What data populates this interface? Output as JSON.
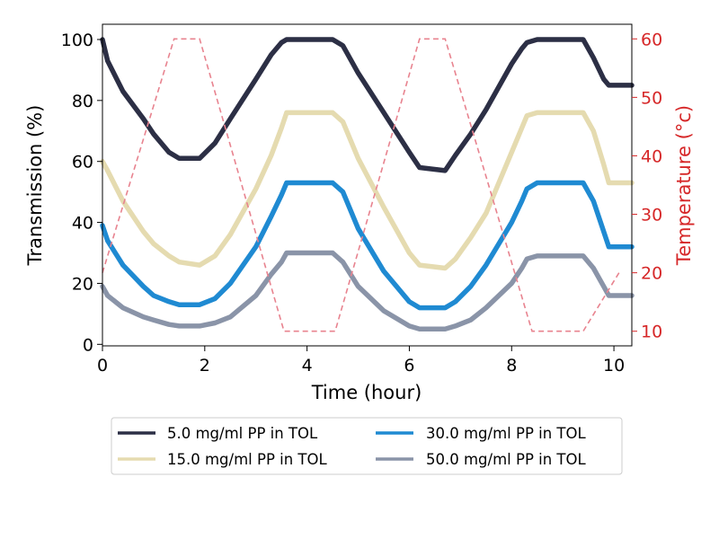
{
  "chart_data": {
    "type": "line",
    "xlabel": "Time (hour)",
    "ylabel": "Transmission (%)",
    "y2label": "Temperature (°c)",
    "xlim": [
      0,
      10.35
    ],
    "ylim": [
      -0.5,
      105
    ],
    "y2lim": [
      7.5,
      62.5
    ],
    "x_ticks": [
      0,
      2,
      4,
      6,
      8,
      10
    ],
    "y_ticks": [
      0,
      20,
      40,
      60,
      80,
      100
    ],
    "y2_ticks": [
      10,
      20,
      30,
      40,
      50,
      60
    ],
    "grid": false,
    "legend_position": "below plot",
    "temperature_color": "#d62728",
    "series": [
      {
        "name": "5.0 mg/ml PP in TOL",
        "color": "#2c2f45",
        "x": [
          0,
          0.1,
          0.4,
          0.8,
          1.0,
          1.3,
          1.5,
          1.9,
          2.2,
          2.5,
          3.0,
          3.3,
          3.5,
          3.6,
          4.0,
          4.5,
          4.7,
          5.0,
          5.5,
          6.0,
          6.2,
          6.7,
          6.9,
          7.2,
          7.5,
          8.0,
          8.2,
          8.3,
          8.5,
          9.0,
          9.4,
          9.6,
          9.8,
          9.9,
          10.35
        ],
        "y": [
          100,
          93,
          83,
          74,
          69,
          63,
          61,
          61,
          66,
          74,
          87,
          95,
          99,
          100,
          100,
          100,
          98,
          89,
          76,
          63,
          58,
          57,
          62,
          69,
          77,
          92,
          97,
          99,
          100,
          100,
          100,
          94,
          87,
          85,
          85
        ]
      },
      {
        "name": "15.0 mg/ml PP in TOL",
        "color": "#e5dbb0",
        "x": [
          0,
          0.1,
          0.4,
          0.8,
          1.0,
          1.3,
          1.5,
          1.9,
          2.2,
          2.5,
          3.0,
          3.3,
          3.5,
          3.6,
          4.0,
          4.5,
          4.7,
          5.0,
          5.5,
          6.0,
          6.2,
          6.7,
          6.9,
          7.2,
          7.5,
          8.0,
          8.2,
          8.3,
          8.5,
          9.0,
          9.4,
          9.6,
          9.8,
          9.9,
          10.35
        ],
        "y": [
          60,
          57,
          47,
          37,
          33,
          29,
          27,
          26,
          29,
          36,
          51,
          62,
          71,
          76,
          76,
          76,
          73,
          61,
          45,
          30,
          26,
          25,
          28,
          35,
          43,
          63,
          71,
          75,
          76,
          76,
          76,
          70,
          59,
          53,
          53
        ]
      },
      {
        "name": "30.0 mg/ml PP in TOL",
        "color": "#1f8ad2",
        "x": [
          0,
          0.1,
          0.4,
          0.8,
          1.0,
          1.3,
          1.5,
          1.9,
          2.2,
          2.5,
          3.0,
          3.3,
          3.5,
          3.6,
          4.0,
          4.5,
          4.7,
          5.0,
          5.5,
          6.0,
          6.2,
          6.7,
          6.9,
          7.2,
          7.5,
          8.0,
          8.2,
          8.3,
          8.5,
          9.0,
          9.4,
          9.6,
          9.8,
          9.9,
          10.35
        ],
        "y": [
          39,
          34,
          26,
          19,
          16,
          14,
          13,
          13,
          15,
          20,
          32,
          42,
          49,
          53,
          53,
          53,
          50,
          38,
          24,
          14,
          12,
          12,
          14,
          19,
          26,
          40,
          47,
          51,
          53,
          53,
          53,
          47,
          37,
          32,
          32
        ]
      },
      {
        "name": "50.0 mg/ml PP in TOL",
        "color": "#8a94a8",
        "x": [
          0,
          0.1,
          0.4,
          0.8,
          1.0,
          1.3,
          1.5,
          1.9,
          2.2,
          2.5,
          3.0,
          3.3,
          3.5,
          3.6,
          4.0,
          4.5,
          4.7,
          5.0,
          5.5,
          6.0,
          6.2,
          6.7,
          6.9,
          7.2,
          7.5,
          8.0,
          8.2,
          8.3,
          8.5,
          9.0,
          9.4,
          9.6,
          9.8,
          9.9,
          10.35
        ],
        "y": [
          19,
          16,
          12,
          9,
          8,
          6.5,
          6,
          6,
          7,
          9,
          16,
          23,
          27,
          30,
          30,
          30,
          27,
          19,
          11,
          6,
          5,
          5,
          6,
          8,
          12,
          20,
          25,
          28,
          29,
          29,
          29,
          25,
          19,
          16,
          16
        ]
      }
    ],
    "temperature": {
      "x": [
        0,
        1.4,
        1.9,
        3.55,
        4.55,
        6.2,
        6.7,
        8.4,
        9.4,
        10.1
      ],
      "y": [
        20,
        60,
        60,
        10,
        10,
        60,
        60,
        10,
        10,
        20
      ]
    }
  }
}
